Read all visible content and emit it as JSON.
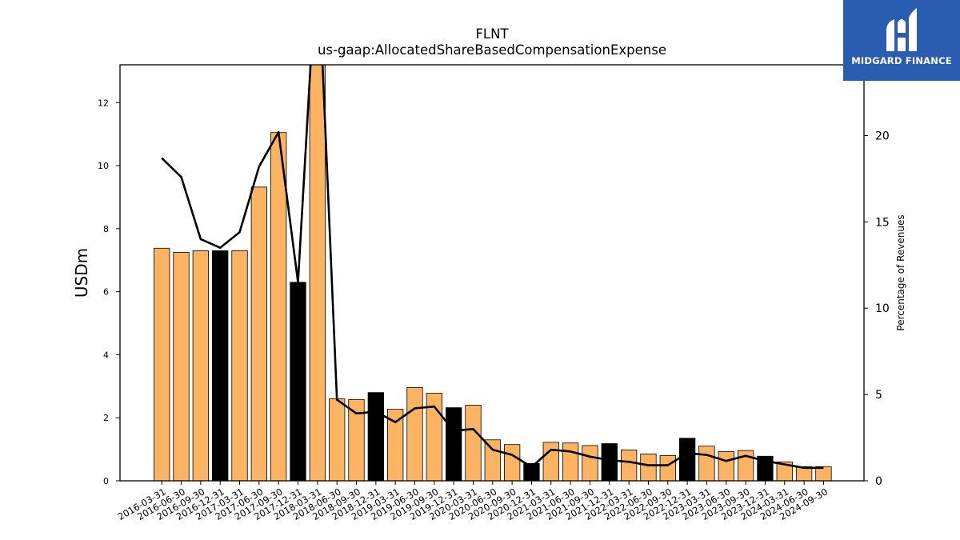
{
  "brand": {
    "name": "MIDGARD FINANCE",
    "bg_color": "#2a5db0",
    "icon": "midgard-logo-icon"
  },
  "chart_data": {
    "type": "bar",
    "title": "FLNT",
    "subtitle": "us-gaap:AllocatedShareBasedCompensationExpense",
    "ylabel": "USDm",
    "y2label": "Percentage of Revenues",
    "ylim": [
      0,
      13.2
    ],
    "y2lim": [
      0,
      24.1
    ],
    "yticks": [
      0,
      2,
      4,
      6,
      8,
      10,
      12
    ],
    "y2ticks": [
      0,
      5,
      10,
      15,
      20
    ],
    "grid": false,
    "bar_color": "#fdb462",
    "highlight_color": "#000000",
    "line_color": "#000000",
    "categories": [
      "2016-03-31",
      "2016-06-30",
      "2016-09-30",
      "2016-12-31",
      "2017-03-31",
      "2017-06-30",
      "2017-09-30",
      "2017-12-31",
      "2018-03-31",
      "2018-06-30",
      "2018-09-30",
      "2018-12-31",
      "2019-03-31",
      "2019-06-30",
      "2019-09-30",
      "2019-12-31",
      "2020-03-31",
      "2020-06-30",
      "2020-09-30",
      "2020-12-31",
      "2021-03-31",
      "2021-06-30",
      "2021-09-30",
      "2021-12-31",
      "2022-03-31",
      "2022-06-30",
      "2022-09-30",
      "2022-12-31",
      "2023-03-31",
      "2023-06-30",
      "2023-09-30",
      "2023-12-31",
      "2024-03-31",
      "2024-06-30",
      "2024-09-30"
    ],
    "series": [
      {
        "kind": "bar",
        "axis": "left",
        "values": [
          7.38,
          7.25,
          7.3,
          7.3,
          7.3,
          9.32,
          11.05,
          6.3,
          13.5,
          2.6,
          2.58,
          2.8,
          2.27,
          2.96,
          2.78,
          2.32,
          2.4,
          1.3,
          1.15,
          0.55,
          1.22,
          1.2,
          1.12,
          1.18,
          0.98,
          0.85,
          0.8,
          1.35,
          1.1,
          0.93,
          0.96,
          0.78,
          0.6,
          0.45,
          0.45
        ],
        "highlight": [
          false,
          false,
          false,
          true,
          false,
          false,
          false,
          true,
          false,
          false,
          false,
          true,
          false,
          false,
          false,
          true,
          false,
          false,
          false,
          true,
          false,
          false,
          false,
          true,
          false,
          false,
          false,
          true,
          false,
          false,
          false,
          true,
          false,
          false,
          false
        ]
      },
      {
        "kind": "line",
        "axis": "right",
        "values": [
          18.7,
          17.6,
          14.0,
          13.5,
          14.4,
          18.2,
          20.2,
          11.5,
          31.0,
          4.7,
          3.9,
          4.0,
          3.4,
          4.2,
          4.3,
          2.9,
          3.0,
          1.8,
          1.5,
          0.8,
          1.8,
          1.7,
          1.4,
          1.2,
          1.1,
          0.9,
          0.9,
          1.6,
          1.5,
          1.15,
          1.45,
          1.15,
          0.95,
          0.75,
          0.75
        ]
      }
    ]
  }
}
